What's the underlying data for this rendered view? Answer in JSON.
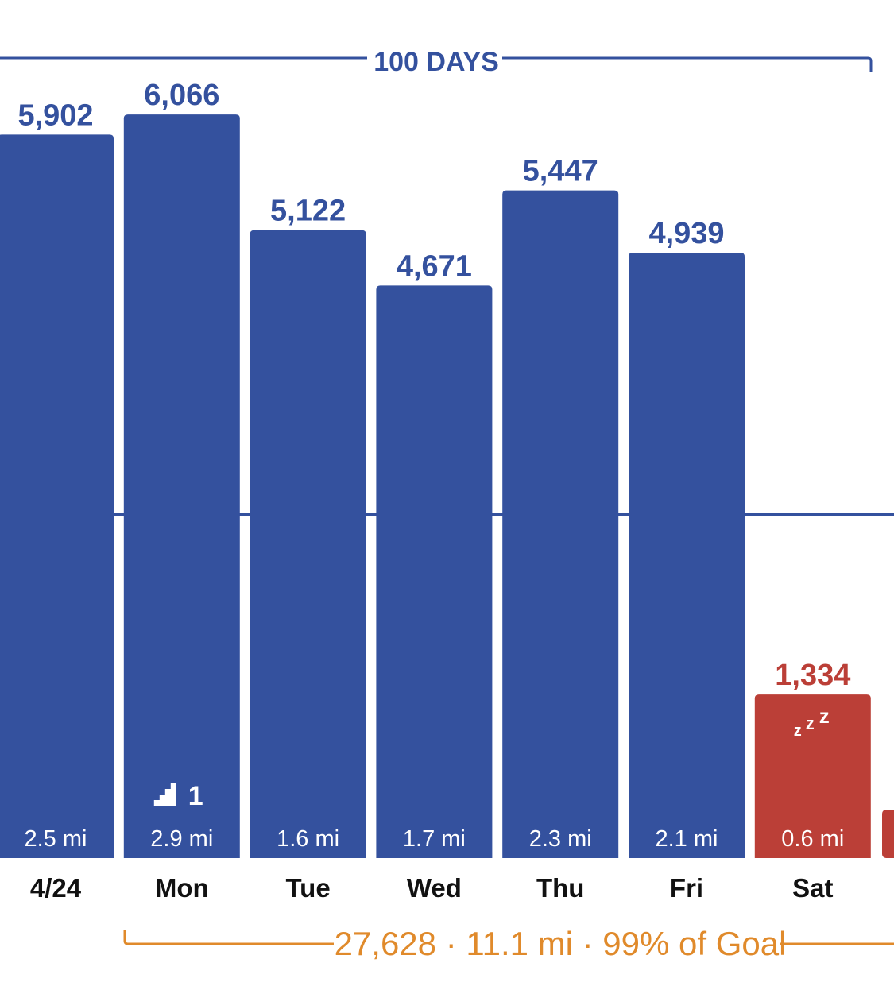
{
  "colors": {
    "bar": "#34519e",
    "bar_below_goal": "#bb3f37",
    "value_text": "#34519e",
    "value_text_below_goal": "#bb3f37",
    "goal_line": "#34519e",
    "summary": "#e08a2b",
    "day_label": "#111111"
  },
  "period": {
    "label": "100 DAYS"
  },
  "chart_data": {
    "type": "bar",
    "categories": [
      "4/24",
      "Mon",
      "Tue",
      "Wed",
      "Thu",
      "Fri",
      "Sat"
    ],
    "values": [
      5902,
      6066,
      5122,
      4671,
      5447,
      4939,
      1334
    ],
    "value_labels": [
      "5,902",
      "6,066",
      "5,122",
      "4,671",
      "5,447",
      "4,939",
      "1,334"
    ],
    "distance_labels": [
      "2.5 mi",
      "2.9 mi",
      "1.6 mi",
      "1.7 mi",
      "2.3 mi",
      "2.1 mi",
      "0.6 mi"
    ],
    "below_goal": [
      false,
      false,
      false,
      false,
      false,
      false,
      true
    ],
    "goal": 2800,
    "ylim": [
      0,
      7000
    ],
    "grid": false,
    "title": "",
    "xlabel": "",
    "ylabel": ""
  },
  "annotations": {
    "stairs": {
      "day_index": 1,
      "count": "1",
      "icon": "stairs-icon"
    },
    "rest": {
      "day_index": 6,
      "text_small": "z",
      "text_mid": "z",
      "text_large": "z",
      "icon": "sleep-zzz-icon"
    }
  },
  "summary": {
    "text": "27,628 · 11.1 mi · 99% of Goal"
  }
}
